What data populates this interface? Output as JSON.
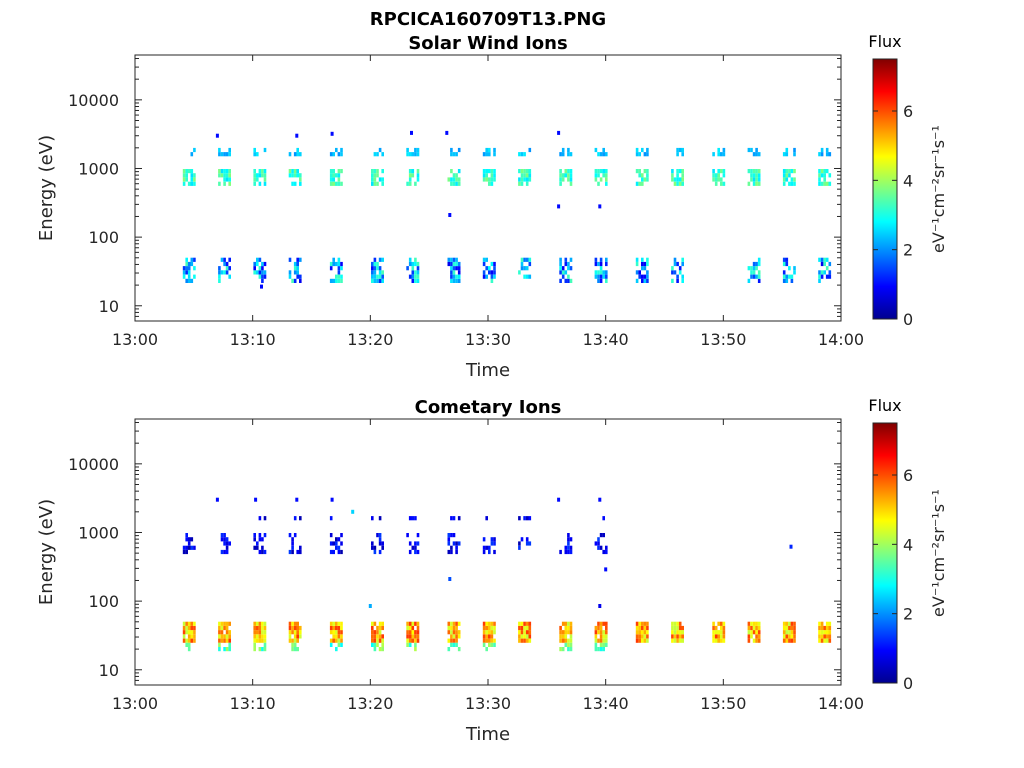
{
  "figure": {
    "file_title": "RPCICA160709T13.PNG"
  },
  "colorbar": {
    "label": "Flux",
    "unit_label": "eV⁻¹cm⁻²sr⁻¹s⁻¹",
    "ticks": [
      "0",
      "2",
      "4",
      "6"
    ],
    "range": [
      0,
      7.5
    ],
    "colormap": "jet"
  },
  "chart_data": [
    {
      "type": "heatmap",
      "title": "Solar Wind Ions",
      "xlabel": "Time",
      "ylabel": "Energy (eV)",
      "xticks": [
        "13:00",
        "13:10",
        "13:20",
        "13:30",
        "13:40",
        "13:50",
        "14:00"
      ],
      "xlim": [
        "13:00",
        "14:00"
      ],
      "yticks": [
        "10",
        "100",
        "1000",
        "10000"
      ],
      "yscale": "log",
      "ylim": [
        6,
        45000
      ],
      "grid": false,
      "bands": [
        {
          "energy": [
            490,
            890
          ],
          "flux": [
            2.6,
            3.8
          ],
          "p": 0.75
        },
        {
          "energy": [
            1350,
            1750
          ],
          "flux": [
            2.0,
            2.7
          ],
          "p": 0.5
        },
        {
          "energy": [
            20,
            48
          ],
          "flux": [
            0.8,
            3.4
          ],
          "p": 0.6
        }
      ],
      "sweeps": [
        {
          "t": "13:04:30",
          "bands": [
            0,
            1,
            2
          ]
        },
        {
          "t": "13:07:30",
          "bands": [
            0,
            1,
            2
          ]
        },
        {
          "t": "13:10:30",
          "bands": [
            0,
            1,
            2
          ]
        },
        {
          "t": "13:13:30",
          "bands": [
            0,
            1,
            2
          ]
        },
        {
          "t": "13:17:00",
          "bands": [
            0,
            1,
            2
          ]
        },
        {
          "t": "13:20:30",
          "bands": [
            0,
            1,
            2
          ]
        },
        {
          "t": "13:23:30",
          "bands": [
            0,
            1,
            2
          ]
        },
        {
          "t": "13:27:00",
          "bands": [
            0,
            1,
            2
          ]
        },
        {
          "t": "13:30:00",
          "bands": [
            0,
            1,
            2
          ]
        },
        {
          "t": "13:33:00",
          "bands": [
            0,
            1,
            2
          ]
        },
        {
          "t": "13:36:30",
          "bands": [
            0,
            1,
            2
          ]
        },
        {
          "t": "13:39:30",
          "bands": [
            0,
            1,
            2
          ]
        },
        {
          "t": "13:43:00",
          "bands": [
            0,
            1,
            2
          ]
        },
        {
          "t": "13:46:00",
          "bands": [
            0,
            1,
            2
          ]
        },
        {
          "t": "13:49:30",
          "bands": [
            0,
            1
          ]
        },
        {
          "t": "13:52:30",
          "bands": [
            0,
            1,
            2
          ]
        },
        {
          "t": "13:55:30",
          "bands": [
            0,
            1,
            2
          ]
        },
        {
          "t": "13:58:30",
          "bands": [
            0,
            1,
            2
          ]
        }
      ],
      "sparse_points": [
        {
          "t": "13:07:00",
          "energy": 3000,
          "flux": 1.0
        },
        {
          "t": "13:13:45",
          "energy": 3000,
          "flux": 1.0
        },
        {
          "t": "13:16:45",
          "energy": 3200,
          "flux": 1.0
        },
        {
          "t": "13:23:30",
          "energy": 3300,
          "flux": 1.0
        },
        {
          "t": "13:26:30",
          "energy": 3300,
          "flux": 1.0
        },
        {
          "t": "13:36:00",
          "energy": 3300,
          "flux": 1.0
        },
        {
          "t": "13:26:45",
          "energy": 210,
          "flux": 1.0
        },
        {
          "t": "13:36:00",
          "energy": 280,
          "flux": 1.0
        },
        {
          "t": "13:39:30",
          "energy": 280,
          "flux": 1.0
        },
        {
          "t": "13:10:45",
          "energy": 19,
          "flux": 1.0
        }
      ]
    },
    {
      "type": "heatmap",
      "title": "Cometary Ions",
      "xlabel": "Time",
      "ylabel": "Energy (eV)",
      "xticks": [
        "13:00",
        "13:10",
        "13:20",
        "13:30",
        "13:40",
        "13:50",
        "14:00"
      ],
      "xlim": [
        "13:00",
        "14:00"
      ],
      "yticks": [
        "10",
        "100",
        "1000",
        "10000"
      ],
      "yscale": "log",
      "ylim": [
        6,
        45000
      ],
      "grid": false,
      "bands": [
        {
          "energy": [
            24,
            46
          ],
          "flux": [
            4.2,
            6.2
          ],
          "p": 0.95
        },
        {
          "energy": [
            18,
            24
          ],
          "flux": [
            2.8,
            4.2
          ],
          "p": 0.45
        },
        {
          "energy": [
            480,
            880
          ],
          "flux": [
            0.3,
            1.4
          ],
          "p": 0.45
        },
        {
          "energy": [
            1400,
            1700
          ],
          "flux": [
            0.3,
            1.2
          ],
          "p": 0.4
        }
      ],
      "sweeps": [
        {
          "t": "13:04:30",
          "bands": [
            0,
            1,
            2
          ]
        },
        {
          "t": "13:07:30",
          "bands": [
            0,
            1,
            2
          ]
        },
        {
          "t": "13:10:30",
          "bands": [
            0,
            1,
            2,
            3
          ]
        },
        {
          "t": "13:13:30",
          "bands": [
            0,
            1,
            2,
            3
          ]
        },
        {
          "t": "13:17:00",
          "bands": [
            0,
            1,
            2,
            3
          ]
        },
        {
          "t": "13:20:30",
          "bands": [
            0,
            1,
            2,
            3
          ]
        },
        {
          "t": "13:23:30",
          "bands": [
            0,
            1,
            2,
            3
          ]
        },
        {
          "t": "13:27:00",
          "bands": [
            0,
            1,
            2,
            3
          ]
        },
        {
          "t": "13:30:00",
          "bands": [
            0,
            1,
            2,
            3
          ]
        },
        {
          "t": "13:33:00",
          "bands": [
            0,
            2,
            3
          ]
        },
        {
          "t": "13:36:30",
          "bands": [
            0,
            1,
            2,
            3
          ]
        },
        {
          "t": "13:39:30",
          "bands": [
            0,
            1,
            2,
            3
          ]
        },
        {
          "t": "13:43:00",
          "bands": [
            0
          ]
        },
        {
          "t": "13:46:00",
          "bands": [
            0
          ]
        },
        {
          "t": "13:49:30",
          "bands": [
            0
          ]
        },
        {
          "t": "13:52:30",
          "bands": [
            0
          ]
        },
        {
          "t": "13:55:30",
          "bands": [
            0
          ]
        },
        {
          "t": "13:58:30",
          "bands": [
            0
          ]
        }
      ],
      "sparse_points": [
        {
          "t": "13:07:00",
          "energy": 3000,
          "flux": 1.0
        },
        {
          "t": "13:10:15",
          "energy": 3000,
          "flux": 1.0
        },
        {
          "t": "13:13:45",
          "energy": 3000,
          "flux": 1.0
        },
        {
          "t": "13:16:45",
          "energy": 3000,
          "flux": 1.0
        },
        {
          "t": "13:36:00",
          "energy": 3000,
          "flux": 1.0
        },
        {
          "t": "13:39:30",
          "energy": 3000,
          "flux": 1.0
        },
        {
          "t": "13:18:30",
          "energy": 2000,
          "flux": 2.5
        },
        {
          "t": "13:26:45",
          "energy": 210,
          "flux": 1.5
        },
        {
          "t": "13:40:00",
          "energy": 290,
          "flux": 1.0
        },
        {
          "t": "13:20:00",
          "energy": 85,
          "flux": 2.2
        },
        {
          "t": "13:39:30",
          "energy": 85,
          "flux": 0.8
        },
        {
          "t": "13:55:45",
          "energy": 620,
          "flux": 1.2
        }
      ]
    }
  ]
}
